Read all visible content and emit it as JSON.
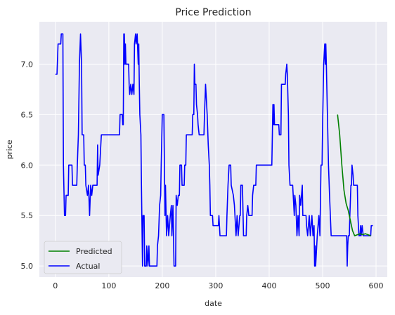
{
  "chart_data": {
    "type": "line",
    "title": "Price Prediction",
    "xlabel": "date",
    "ylabel": "price",
    "xlim": [
      -30,
      621
    ],
    "ylim": [
      4.89,
      7.42
    ],
    "xticks": [
      0,
      100,
      200,
      300,
      400,
      500,
      600
    ],
    "yticks": [
      5.0,
      5.5,
      6.0,
      6.5,
      7.0
    ],
    "ytick_labels": [
      "5.0",
      "5.5",
      "6.0",
      "6.5",
      "7.0"
    ],
    "grid": true,
    "background": "#eaeaf2",
    "legend_position": "lower-left",
    "series": [
      {
        "name": "Predicted",
        "color": "#008000",
        "points": [
          [
            528,
            6.5
          ],
          [
            532,
            6.3
          ],
          [
            536,
            6.0
          ],
          [
            540,
            5.75
          ],
          [
            544,
            5.62
          ],
          [
            548,
            5.55
          ],
          [
            552,
            5.45
          ],
          [
            556,
            5.35
          ],
          [
            560,
            5.3
          ],
          [
            565,
            5.31
          ],
          [
            570,
            5.32
          ],
          [
            575,
            5.31
          ],
          [
            580,
            5.32
          ],
          [
            585,
            5.31
          ],
          [
            590,
            5.3
          ]
        ]
      },
      {
        "name": "Actual",
        "color": "#0000ff",
        "points": [
          [
            0,
            6.9
          ],
          [
            3,
            6.9
          ],
          [
            5,
            7.2
          ],
          [
            10,
            7.2
          ],
          [
            11,
            7.3
          ],
          [
            14,
            7.3
          ],
          [
            15,
            6.0
          ],
          [
            17,
            5.5
          ],
          [
            19,
            5.5
          ],
          [
            20,
            5.7
          ],
          [
            24,
            5.7
          ],
          [
            25,
            6.0
          ],
          [
            31,
            6.0
          ],
          [
            32,
            5.8
          ],
          [
            40,
            5.8
          ],
          [
            41,
            6.0
          ],
          [
            43,
            6.3
          ],
          [
            45,
            7.0
          ],
          [
            47,
            7.3
          ],
          [
            49,
            7.0
          ],
          [
            50,
            6.3
          ],
          [
            53,
            6.3
          ],
          [
            54,
            6.0
          ],
          [
            56,
            6.0
          ],
          [
            57,
            5.8
          ],
          [
            60,
            5.7
          ],
          [
            62,
            5.8
          ],
          [
            64,
            5.5
          ],
          [
            66,
            5.8
          ],
          [
            68,
            5.7
          ],
          [
            70,
            5.8
          ],
          [
            78,
            5.8
          ],
          [
            79,
            6.2
          ],
          [
            80,
            5.9
          ],
          [
            83,
            6.0
          ],
          [
            86,
            6.3
          ],
          [
            120,
            6.3
          ],
          [
            121,
            6.5
          ],
          [
            125,
            6.5
          ],
          [
            126,
            6.4
          ],
          [
            127,
            6.4
          ],
          [
            128,
            7.3
          ],
          [
            129,
            7.3
          ],
          [
            130,
            7.0
          ],
          [
            131,
            7.2
          ],
          [
            132,
            7.0
          ],
          [
            137,
            7.0
          ],
          [
            138,
            6.8
          ],
          [
            139,
            6.7
          ],
          [
            141,
            6.8
          ],
          [
            143,
            6.7
          ],
          [
            145,
            6.8
          ],
          [
            147,
            6.7
          ],
          [
            148,
            7.2
          ],
          [
            150,
            7.3
          ],
          [
            151,
            7.2
          ],
          [
            153,
            7.3
          ],
          [
            155,
            7.0
          ],
          [
            156,
            7.2
          ],
          [
            157,
            6.8
          ],
          [
            158,
            6.5
          ],
          [
            160,
            6.3
          ],
          [
            161,
            5.8
          ],
          [
            163,
            5.0
          ],
          [
            164,
            5.5
          ],
          [
            166,
            5.5
          ],
          [
            167,
            5.0
          ],
          [
            170,
            5.0
          ],
          [
            171,
            5.2
          ],
          [
            173,
            5.0
          ],
          [
            175,
            5.2
          ],
          [
            176,
            5.0
          ],
          [
            190,
            5.0
          ],
          [
            191,
            5.2
          ],
          [
            193,
            5.3
          ],
          [
            195,
            5.6
          ],
          [
            197,
            5.7
          ],
          [
            198,
            6.0
          ],
          [
            200,
            6.5
          ],
          [
            203,
            6.5
          ],
          [
            204,
            6.0
          ],
          [
            205,
            5.5
          ],
          [
            206,
            5.8
          ],
          [
            208,
            5.3
          ],
          [
            210,
            5.5
          ],
          [
            212,
            5.3
          ],
          [
            215,
            5.5
          ],
          [
            217,
            5.6
          ],
          [
            218,
            5.3
          ],
          [
            220,
            5.6
          ],
          [
            222,
            5.0
          ],
          [
            225,
            5.0
          ],
          [
            226,
            5.7
          ],
          [
            228,
            5.6
          ],
          [
            230,
            5.7
          ],
          [
            232,
            5.7
          ],
          [
            233,
            6.0
          ],
          [
            236,
            6.0
          ],
          [
            237,
            5.8
          ],
          [
            241,
            5.8
          ],
          [
            242,
            6.0
          ],
          [
            244,
            6.0
          ],
          [
            245,
            6.3
          ],
          [
            256,
            6.3
          ],
          [
            257,
            6.5
          ],
          [
            259,
            6.5
          ],
          [
            260,
            7.0
          ],
          [
            261,
            6.8
          ],
          [
            263,
            6.8
          ],
          [
            264,
            6.6
          ],
          [
            266,
            6.5
          ],
          [
            267,
            6.4
          ],
          [
            269,
            6.3
          ],
          [
            278,
            6.3
          ],
          [
            279,
            6.5
          ],
          [
            281,
            6.8
          ],
          [
            282,
            6.7
          ],
          [
            284,
            6.5
          ],
          [
            286,
            6.2
          ],
          [
            288,
            6.0
          ],
          [
            289,
            5.8
          ],
          [
            290,
            5.5
          ],
          [
            294,
            5.5
          ],
          [
            295,
            5.4
          ],
          [
            305,
            5.4
          ],
          [
            306,
            5.5
          ],
          [
            308,
            5.3
          ],
          [
            320,
            5.3
          ],
          [
            321,
            5.5
          ],
          [
            323,
            5.8
          ],
          [
            325,
            6.0
          ],
          [
            328,
            6.0
          ],
          [
            329,
            5.8
          ],
          [
            333,
            5.7
          ],
          [
            335,
            5.6
          ],
          [
            336,
            5.5
          ],
          [
            338,
            5.3
          ],
          [
            340,
            5.5
          ],
          [
            342,
            5.3
          ],
          [
            345,
            5.5
          ],
          [
            346,
            5.5
          ],
          [
            347,
            5.8
          ],
          [
            350,
            5.8
          ],
          [
            352,
            5.3
          ],
          [
            357,
            5.3
          ],
          [
            358,
            5.5
          ],
          [
            360,
            5.6
          ],
          [
            362,
            5.5
          ],
          [
            368,
            5.5
          ],
          [
            369,
            5.7
          ],
          [
            371,
            5.8
          ],
          [
            375,
            5.8
          ],
          [
            376,
            6.0
          ],
          [
            405,
            6.0
          ],
          [
            406,
            6.3
          ],
          [
            407,
            6.6
          ],
          [
            408,
            6.4
          ],
          [
            409,
            6.6
          ],
          [
            410,
            6.4
          ],
          [
            418,
            6.4
          ],
          [
            419,
            6.3
          ],
          [
            422,
            6.3
          ],
          [
            423,
            6.8
          ],
          [
            430,
            6.8
          ],
          [
            431,
            6.9
          ],
          [
            433,
            7.0
          ],
          [
            434,
            6.9
          ],
          [
            436,
            6.5
          ],
          [
            437,
            6.0
          ],
          [
            439,
            5.8
          ],
          [
            444,
            5.8
          ],
          [
            445,
            5.7
          ],
          [
            447,
            5.5
          ],
          [
            448,
            5.7
          ],
          [
            450,
            5.6
          ],
          [
            452,
            5.3
          ],
          [
            454,
            5.5
          ],
          [
            456,
            5.3
          ],
          [
            457,
            5.7
          ],
          [
            459,
            5.6
          ],
          [
            462,
            5.8
          ],
          [
            463,
            5.5
          ],
          [
            469,
            5.5
          ],
          [
            470,
            5.4
          ],
          [
            472,
            5.3
          ],
          [
            475,
            5.5
          ],
          [
            477,
            5.3
          ],
          [
            480,
            5.5
          ],
          [
            482,
            5.3
          ],
          [
            484,
            5.4
          ],
          [
            485,
            5.0
          ],
          [
            486,
            5.2
          ],
          [
            487,
            5.0
          ],
          [
            490,
            5.3
          ],
          [
            493,
            5.5
          ],
          [
            495,
            5.3
          ],
          [
            497,
            6.0
          ],
          [
            499,
            6.0
          ],
          [
            500,
            6.4
          ],
          [
            502,
            7.0
          ],
          [
            504,
            7.2
          ],
          [
            505,
            7.0
          ],
          [
            506,
            7.2
          ],
          [
            507,
            7.0
          ],
          [
            509,
            6.5
          ],
          [
            511,
            6.0
          ],
          [
            513,
            5.7
          ],
          [
            516,
            5.3
          ],
          [
            545,
            5.3
          ],
          [
            546,
            5.0
          ],
          [
            547,
            5.2
          ],
          [
            548,
            5.3
          ],
          [
            550,
            5.3
          ],
          [
            551,
            5.5
          ],
          [
            553,
            5.8
          ],
          [
            554,
            5.8
          ],
          [
            555,
            6.0
          ],
          [
            557,
            5.9
          ],
          [
            558,
            5.8
          ],
          [
            565,
            5.8
          ],
          [
            566,
            5.5
          ],
          [
            568,
            5.3
          ],
          [
            570,
            5.3
          ],
          [
            571,
            5.4
          ],
          [
            572,
            5.3
          ],
          [
            574,
            5.4
          ],
          [
            576,
            5.3
          ],
          [
            590,
            5.3
          ],
          [
            591,
            5.4
          ],
          [
            594,
            5.4
          ]
        ]
      }
    ]
  }
}
